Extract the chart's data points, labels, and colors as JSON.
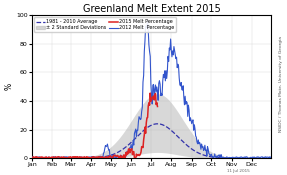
{
  "title": "Greenland Melt Extent 2015",
  "ylabel": "%",
  "xlabel_ticks": [
    "Jan",
    "Feb",
    "Mar",
    "Apr",
    "May",
    "Jun",
    "Jul",
    "Aug",
    "Sep",
    "Oct",
    "Nov",
    "Dec"
  ],
  "yticks": [
    0,
    20,
    40,
    60,
    80,
    100
  ],
  "ylim": [
    0,
    100
  ],
  "legend": [
    {
      "label": "1981 - 2010 Average",
      "color": "#3333aa",
      "linestyle": "--",
      "linewidth": 0.9
    },
    {
      "label": "2015 Melt Percentage",
      "color": "#dd2222",
      "linestyle": "-",
      "linewidth": 1.1
    },
    {
      "label": "2012 Melt  Percentage",
      "color": "#3355cc",
      "linestyle": "-",
      "linewidth": 0.8
    }
  ],
  "shade_label": "± 2 Standard Deviations",
  "shade_color": "#aaaaaa",
  "shade_alpha": 0.45,
  "watermark": "NSIDC / Thomas Mote, University of Georgia",
  "date_label": "11 Jul 2015",
  "background_color": "#ffffff",
  "plot_bg": "#ffffff"
}
